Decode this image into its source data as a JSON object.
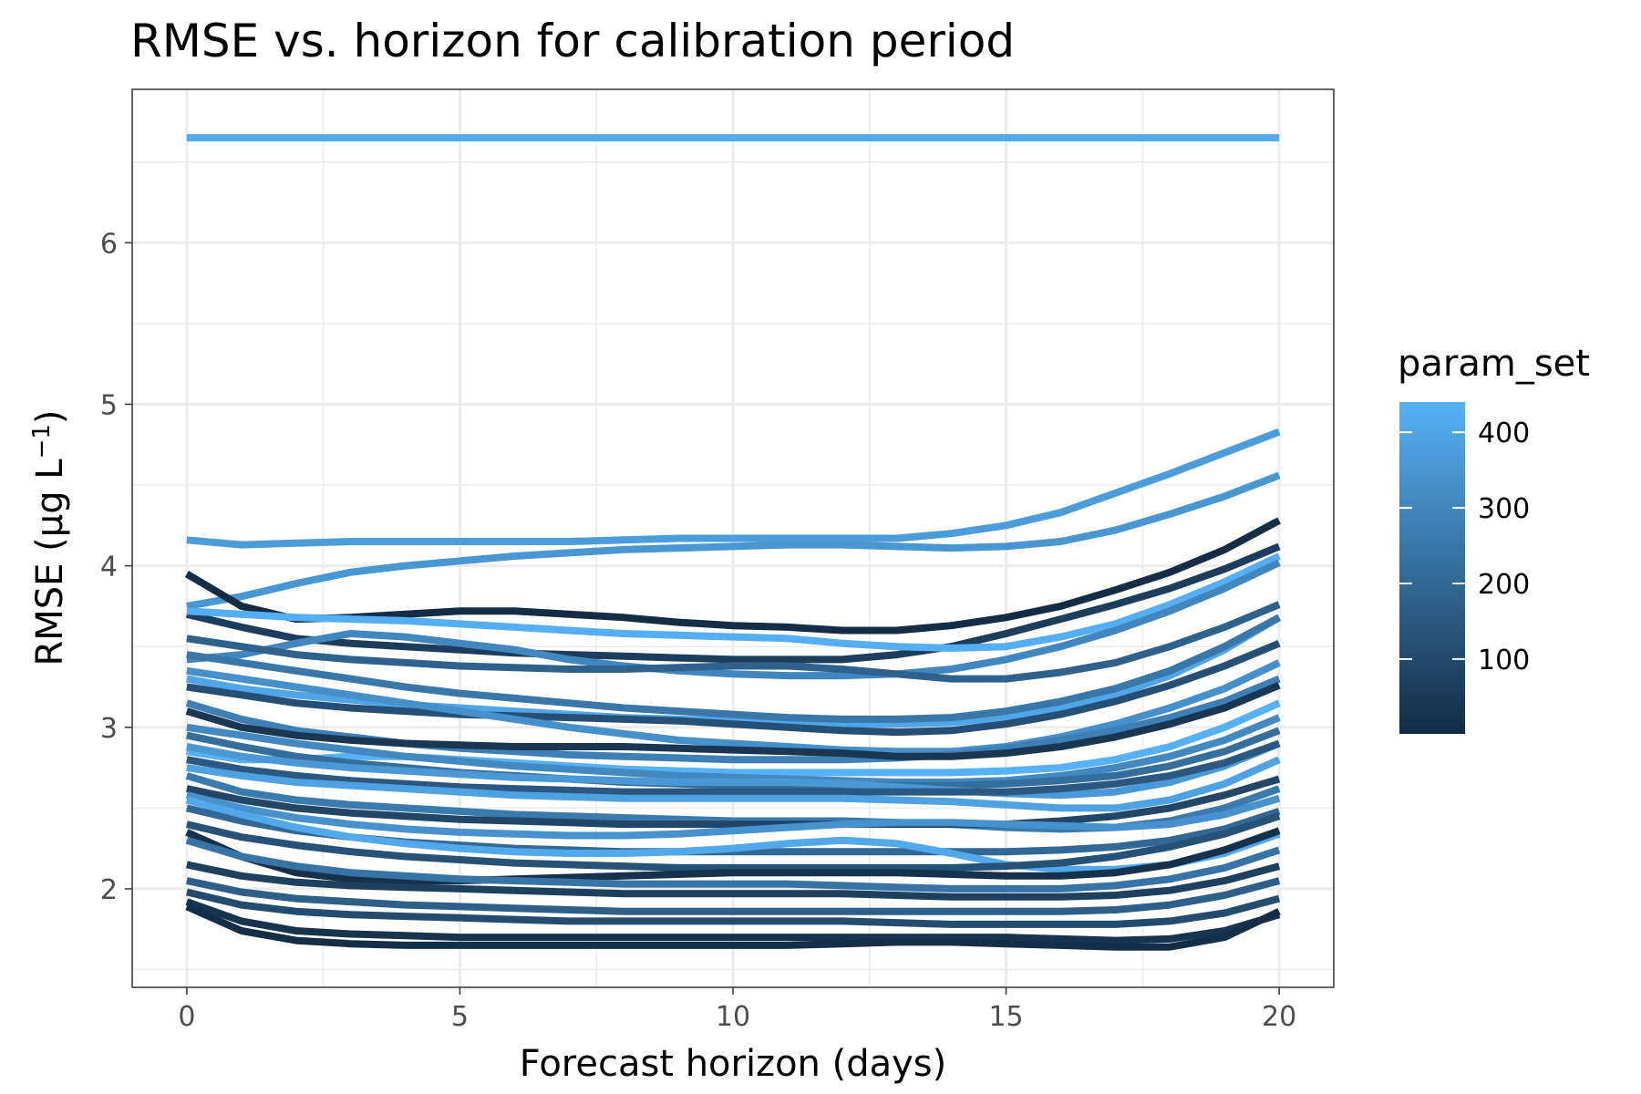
{
  "chart_data": {
    "type": "line",
    "title": "RMSE vs. horizon for calibration period",
    "xlabel": "Forecast horizon (days)",
    "ylabel_main": "RMSE (",
    "ylabel_unit_mu": "μ",
    "ylabel_unit_g": "g L",
    "ylabel_sup": "−1",
    "ylabel_close": ")",
    "xlim": [
      -1,
      21
    ],
    "ylim": [
      1.39,
      6.95
    ],
    "xticks": [
      0,
      5,
      10,
      15,
      20
    ],
    "xtick_labels": [
      "0",
      "5",
      "10",
      "15",
      "20"
    ],
    "yticks": [
      2,
      3,
      4,
      5,
      6
    ],
    "ytick_labels": [
      "2",
      "3",
      "4",
      "5",
      "6"
    ],
    "x": [
      0,
      1,
      2,
      3,
      4,
      5,
      6,
      7,
      8,
      9,
      10,
      11,
      12,
      13,
      14,
      15,
      16,
      17,
      18,
      19,
      20
    ],
    "grid": true,
    "legend": {
      "title": "param_set",
      "position": "right",
      "type": "colorbar",
      "range": [
        1,
        440
      ],
      "ticks": [
        100,
        200,
        300,
        400
      ],
      "tick_labels": [
        "100",
        "200",
        "300",
        "400"
      ],
      "color_low": "#132B43",
      "color_high": "#56B1F7"
    },
    "series": [
      {
        "param_set": 420,
        "values": [
          6.65,
          6.65,
          6.65,
          6.65,
          6.65,
          6.65,
          6.65,
          6.65,
          6.65,
          6.65,
          6.65,
          6.65,
          6.65,
          6.65,
          6.65,
          6.65,
          6.65,
          6.65,
          6.65,
          6.65,
          6.65
        ]
      },
      {
        "param_set": 370,
        "values": [
          4.16,
          4.13,
          4.14,
          4.15,
          4.15,
          4.15,
          4.15,
          4.15,
          4.16,
          4.17,
          4.17,
          4.17,
          4.17,
          4.17,
          4.2,
          4.25,
          4.33,
          4.45,
          4.57,
          4.7,
          4.83
        ]
      },
      {
        "param_set": 350,
        "values": [
          3.75,
          3.81,
          3.89,
          3.96,
          4.0,
          4.03,
          4.06,
          4.08,
          4.1,
          4.11,
          4.12,
          4.13,
          4.13,
          4.12,
          4.11,
          4.12,
          4.15,
          4.22,
          4.32,
          4.43,
          4.56
        ]
      },
      {
        "param_set": 5,
        "values": [
          3.95,
          3.75,
          3.67,
          3.68,
          3.7,
          3.72,
          3.72,
          3.7,
          3.68,
          3.65,
          3.63,
          3.62,
          3.6,
          3.6,
          3.63,
          3.68,
          3.75,
          3.85,
          3.96,
          4.1,
          4.28
        ]
      },
      {
        "param_set": 60,
        "values": [
          3.7,
          3.62,
          3.55,
          3.52,
          3.5,
          3.48,
          3.46,
          3.45,
          3.44,
          3.43,
          3.42,
          3.42,
          3.42,
          3.45,
          3.5,
          3.58,
          3.67,
          3.76,
          3.86,
          3.98,
          4.12
        ]
      },
      {
        "param_set": 430,
        "values": [
          3.72,
          3.7,
          3.68,
          3.67,
          3.66,
          3.64,
          3.62,
          3.6,
          3.58,
          3.57,
          3.56,
          3.55,
          3.52,
          3.5,
          3.49,
          3.5,
          3.56,
          3.64,
          3.76,
          3.9,
          4.06
        ]
      },
      {
        "param_set": 300,
        "values": [
          3.42,
          3.45,
          3.52,
          3.58,
          3.56,
          3.52,
          3.48,
          3.42,
          3.38,
          3.35,
          3.33,
          3.32,
          3.32,
          3.33,
          3.36,
          3.42,
          3.5,
          3.6,
          3.72,
          3.86,
          4.02
        ]
      },
      {
        "param_set": 180,
        "values": [
          3.55,
          3.5,
          3.45,
          3.42,
          3.4,
          3.38,
          3.37,
          3.36,
          3.36,
          3.37,
          3.38,
          3.38,
          3.36,
          3.33,
          3.3,
          3.3,
          3.34,
          3.4,
          3.5,
          3.62,
          3.76
        ]
      },
      {
        "param_set": 400,
        "values": [
          3.3,
          3.24,
          3.2,
          3.17,
          3.14,
          3.12,
          3.1,
          3.08,
          3.06,
          3.05,
          3.04,
          3.03,
          3.02,
          3.02,
          3.03,
          3.06,
          3.12,
          3.2,
          3.32,
          3.48,
          3.68
        ]
      },
      {
        "param_set": 250,
        "values": [
          3.45,
          3.4,
          3.35,
          3.3,
          3.25,
          3.21,
          3.18,
          3.15,
          3.12,
          3.1,
          3.08,
          3.06,
          3.05,
          3.05,
          3.06,
          3.1,
          3.16,
          3.24,
          3.35,
          3.5,
          3.68
        ]
      },
      {
        "param_set": 120,
        "values": [
          3.25,
          3.2,
          3.15,
          3.12,
          3.1,
          3.08,
          3.07,
          3.06,
          3.05,
          3.04,
          3.02,
          3.0,
          2.98,
          2.97,
          2.98,
          3.02,
          3.08,
          3.16,
          3.26,
          3.38,
          3.52
        ]
      },
      {
        "param_set": 330,
        "values": [
          3.35,
          3.3,
          3.25,
          3.2,
          3.15,
          3.1,
          3.05,
          3.0,
          2.96,
          2.92,
          2.9,
          2.88,
          2.86,
          2.85,
          2.85,
          2.88,
          2.94,
          3.02,
          3.12,
          3.24,
          3.4
        ]
      },
      {
        "param_set": 280,
        "values": [
          3.15,
          3.05,
          2.98,
          2.94,
          2.9,
          2.87,
          2.85,
          2.83,
          2.82,
          2.81,
          2.8,
          2.8,
          2.8,
          2.81,
          2.83,
          2.87,
          2.92,
          2.98,
          3.06,
          3.16,
          3.3
        ]
      },
      {
        "param_set": 40,
        "values": [
          3.1,
          3.0,
          2.95,
          2.92,
          2.9,
          2.89,
          2.88,
          2.88,
          2.88,
          2.87,
          2.86,
          2.85,
          2.84,
          2.82,
          2.82,
          2.84,
          2.88,
          2.94,
          3.02,
          3.12,
          3.26
        ]
      },
      {
        "param_set": 440,
        "values": [
          2.85,
          2.8,
          2.8,
          2.82,
          2.82,
          2.8,
          2.78,
          2.76,
          2.74,
          2.73,
          2.72,
          2.72,
          2.72,
          2.72,
          2.72,
          2.73,
          2.75,
          2.8,
          2.88,
          3.0,
          3.15
        ]
      },
      {
        "param_set": 310,
        "values": [
          3.0,
          2.95,
          2.9,
          2.86,
          2.82,
          2.79,
          2.76,
          2.74,
          2.72,
          2.7,
          2.69,
          2.68,
          2.67,
          2.66,
          2.66,
          2.67,
          2.7,
          2.75,
          2.82,
          2.92,
          3.06
        ]
      },
      {
        "param_set": 220,
        "values": [
          2.95,
          2.88,
          2.82,
          2.78,
          2.75,
          2.72,
          2.7,
          2.68,
          2.66,
          2.65,
          2.64,
          2.64,
          2.64,
          2.64,
          2.64,
          2.65,
          2.67,
          2.7,
          2.76,
          2.85,
          2.98
        ]
      },
      {
        "param_set": 360,
        "values": [
          2.88,
          2.82,
          2.78,
          2.75,
          2.73,
          2.71,
          2.69,
          2.68,
          2.67,
          2.66,
          2.66,
          2.66,
          2.65,
          2.63,
          2.61,
          2.59,
          2.58,
          2.6,
          2.66,
          2.76,
          2.9
        ]
      },
      {
        "param_set": 150,
        "values": [
          2.8,
          2.74,
          2.7,
          2.67,
          2.65,
          2.63,
          2.62,
          2.61,
          2.6,
          2.6,
          2.6,
          2.6,
          2.6,
          2.6,
          2.6,
          2.6,
          2.62,
          2.65,
          2.7,
          2.78,
          2.9
        ]
      },
      {
        "param_set": 390,
        "values": [
          2.75,
          2.7,
          2.66,
          2.64,
          2.62,
          2.6,
          2.58,
          2.57,
          2.56,
          2.56,
          2.56,
          2.56,
          2.56,
          2.55,
          2.54,
          2.52,
          2.5,
          2.5,
          2.55,
          2.65,
          2.8
        ]
      },
      {
        "param_set": 260,
        "values": [
          2.7,
          2.6,
          2.55,
          2.52,
          2.5,
          2.48,
          2.46,
          2.45,
          2.44,
          2.43,
          2.42,
          2.42,
          2.42,
          2.41,
          2.4,
          2.38,
          2.37,
          2.38,
          2.42,
          2.5,
          2.62
        ]
      },
      {
        "param_set": 90,
        "values": [
          2.62,
          2.55,
          2.5,
          2.47,
          2.45,
          2.43,
          2.42,
          2.41,
          2.4,
          2.4,
          2.4,
          2.4,
          2.4,
          2.4,
          2.4,
          2.4,
          2.42,
          2.45,
          2.5,
          2.58,
          2.68
        ]
      },
      {
        "param_set": 340,
        "values": [
          2.58,
          2.5,
          2.44,
          2.4,
          2.37,
          2.35,
          2.34,
          2.33,
          2.33,
          2.34,
          2.36,
          2.38,
          2.4,
          2.41,
          2.41,
          2.4,
          2.39,
          2.38,
          2.4,
          2.46,
          2.56
        ]
      },
      {
        "param_set": 200,
        "values": [
          2.5,
          2.42,
          2.36,
          2.32,
          2.29,
          2.27,
          2.25,
          2.24,
          2.23,
          2.23,
          2.23,
          2.23,
          2.23,
          2.23,
          2.23,
          2.23,
          2.24,
          2.26,
          2.3,
          2.37,
          2.48
        ]
      },
      {
        "param_set": 410,
        "values": [
          2.55,
          2.46,
          2.38,
          2.32,
          2.28,
          2.25,
          2.23,
          2.22,
          2.22,
          2.23,
          2.25,
          2.28,
          2.3,
          2.28,
          2.22,
          2.15,
          2.12,
          2.12,
          2.15,
          2.22,
          2.34
        ]
      },
      {
        "param_set": 130,
        "values": [
          2.4,
          2.32,
          2.27,
          2.23,
          2.2,
          2.18,
          2.16,
          2.15,
          2.14,
          2.13,
          2.13,
          2.13,
          2.13,
          2.13,
          2.13,
          2.14,
          2.16,
          2.2,
          2.26,
          2.34,
          2.45
        ]
      },
      {
        "param_set": 20,
        "values": [
          2.35,
          2.2,
          2.1,
          2.06,
          2.05,
          2.05,
          2.06,
          2.07,
          2.08,
          2.09,
          2.1,
          2.1,
          2.1,
          2.1,
          2.09,
          2.08,
          2.08,
          2.1,
          2.15,
          2.24,
          2.36
        ]
      },
      {
        "param_set": 240,
        "values": [
          2.3,
          2.2,
          2.14,
          2.1,
          2.08,
          2.06,
          2.05,
          2.04,
          2.03,
          2.03,
          2.03,
          2.03,
          2.02,
          2.01,
          2.0,
          2.0,
          2.0,
          2.02,
          2.06,
          2.13,
          2.24
        ]
      },
      {
        "param_set": 70,
        "values": [
          2.15,
          2.08,
          2.04,
          2.02,
          2.01,
          2.0,
          1.99,
          1.98,
          1.97,
          1.97,
          1.97,
          1.97,
          1.97,
          1.96,
          1.95,
          1.95,
          1.95,
          1.96,
          1.99,
          2.05,
          2.14
        ]
      },
      {
        "param_set": 170,
        "values": [
          2.05,
          1.98,
          1.94,
          1.92,
          1.9,
          1.89,
          1.88,
          1.87,
          1.86,
          1.86,
          1.86,
          1.86,
          1.86,
          1.86,
          1.86,
          1.86,
          1.86,
          1.87,
          1.9,
          1.96,
          2.05
        ]
      },
      {
        "param_set": 110,
        "values": [
          1.98,
          1.9,
          1.86,
          1.84,
          1.83,
          1.82,
          1.81,
          1.8,
          1.8,
          1.8,
          1.8,
          1.8,
          1.8,
          1.79,
          1.78,
          1.78,
          1.78,
          1.78,
          1.8,
          1.85,
          1.94
        ]
      },
      {
        "param_set": 30,
        "values": [
          1.92,
          1.8,
          1.74,
          1.72,
          1.71,
          1.7,
          1.7,
          1.7,
          1.7,
          1.7,
          1.7,
          1.7,
          1.7,
          1.7,
          1.7,
          1.7,
          1.69,
          1.68,
          1.69,
          1.74,
          1.84
        ]
      },
      {
        "param_set": 10,
        "values": [
          1.89,
          1.74,
          1.68,
          1.66,
          1.65,
          1.65,
          1.65,
          1.65,
          1.65,
          1.65,
          1.65,
          1.65,
          1.66,
          1.67,
          1.67,
          1.66,
          1.65,
          1.64,
          1.64,
          1.7,
          1.86
        ]
      }
    ]
  }
}
